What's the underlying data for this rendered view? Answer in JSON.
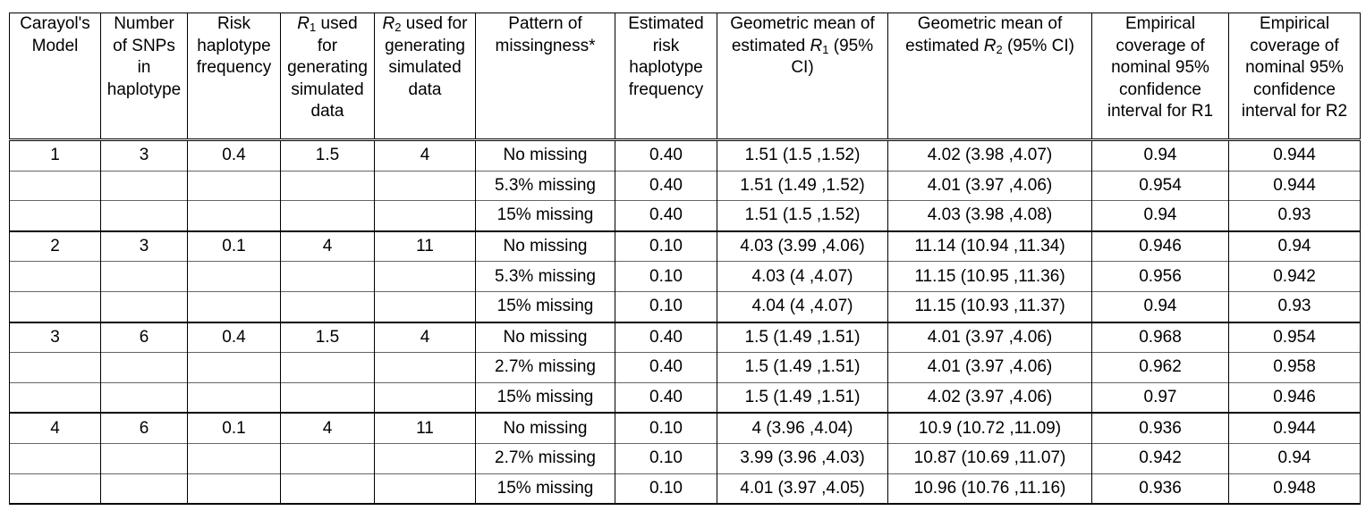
{
  "headers": {
    "c1": [
      "Carayol's",
      "Model"
    ],
    "c2": [
      "Number",
      "of SNPs",
      "in",
      "haplotype"
    ],
    "c3": [
      "Risk",
      "haplotype",
      "frequency"
    ],
    "c4": {
      "var": "R",
      "sub": "1",
      "after": " used",
      "lines": [
        "for",
        "generating",
        "simulated",
        "data"
      ]
    },
    "c5": {
      "var": "R",
      "sub": "2",
      "after": " used for",
      "lines": [
        "generating",
        "simulated",
        "data"
      ]
    },
    "c6": [
      "Pattern of",
      "missingness*"
    ],
    "c7": [
      "Estimated",
      "risk",
      "haplotype",
      "frequency"
    ],
    "c8": {
      "line1": "Geometric mean of",
      "pre": "estimated ",
      "var": "R",
      "sub": "1",
      "after": " (95%",
      "line3": "CI)"
    },
    "c9": {
      "line1": "Geometric mean of",
      "pre": "estimated ",
      "var": "R",
      "sub": "2",
      "after": " (95% CI)"
    },
    "c10": [
      "Empirical",
      "coverage of",
      "nominal 95%",
      "confidence",
      "interval for R1"
    ],
    "c11": [
      "Empirical",
      "coverage of",
      "nominal 95%",
      "confidence",
      "interval for R2"
    ]
  },
  "rows": [
    {
      "model": "1",
      "snps": "3",
      "freq": "0.4",
      "r1": "1.5",
      "r2": "4",
      "pattern": "No missing",
      "est": "0.40",
      "gm1": "1.51 (1.5 ,1.52)",
      "gm2": "4.02 (3.98 ,4.07)",
      "cov1": "0.94",
      "cov2": "0.944"
    },
    {
      "model": "",
      "snps": "",
      "freq": "",
      "r1": "",
      "r2": "",
      "pattern": "5.3% missing",
      "est": "0.40",
      "gm1": "1.51 (1.49 ,1.52)",
      "gm2": "4.01 (3.97 ,4.06)",
      "cov1": "0.954",
      "cov2": "0.944"
    },
    {
      "model": "",
      "snps": "",
      "freq": "",
      "r1": "",
      "r2": "",
      "pattern": "15% missing",
      "est": "0.40",
      "gm1": "1.51 (1.5 ,1.52)",
      "gm2": "4.03 (3.98 ,4.08)",
      "cov1": "0.94",
      "cov2": "0.93"
    },
    {
      "model": "2",
      "snps": "3",
      "freq": "0.1",
      "r1": "4",
      "r2": "11",
      "pattern": "No missing",
      "est": "0.10",
      "gm1": "4.03 (3.99 ,4.06)",
      "gm2": "11.14 (10.94 ,11.34)",
      "cov1": "0.946",
      "cov2": "0.94"
    },
    {
      "model": "",
      "snps": "",
      "freq": "",
      "r1": "",
      "r2": "",
      "pattern": "5.3% missing",
      "est": "0.10",
      "gm1": "4.03 (4 ,4.07)",
      "gm2": "11.15 (10.95 ,11.36)",
      "cov1": "0.956",
      "cov2": "0.942"
    },
    {
      "model": "",
      "snps": "",
      "freq": "",
      "r1": "",
      "r2": "",
      "pattern": "15% missing",
      "est": "0.10",
      "gm1": "4.04 (4 ,4.07)",
      "gm2": "11.15 (10.93 ,11.37)",
      "cov1": "0.94",
      "cov2": "0.93"
    },
    {
      "model": "3",
      "snps": "6",
      "freq": "0.4",
      "r1": "1.5",
      "r2": "4",
      "pattern": "No missing",
      "est": "0.40",
      "gm1": "1.5 (1.49 ,1.51)",
      "gm2": "4.01 (3.97 ,4.06)",
      "cov1": "0.968",
      "cov2": "0.954"
    },
    {
      "model": "",
      "snps": "",
      "freq": "",
      "r1": "",
      "r2": "",
      "pattern": "2.7% missing",
      "est": "0.40",
      "gm1": "1.5 (1.49 ,1.51)",
      "gm2": "4.01 (3.97 ,4.06)",
      "cov1": "0.962",
      "cov2": "0.958"
    },
    {
      "model": "",
      "snps": "",
      "freq": "",
      "r1": "",
      "r2": "",
      "pattern": "15% missing",
      "est": "0.40",
      "gm1": "1.5 (1.49 ,1.51)",
      "gm2": "4.02 (3.97 ,4.06)",
      "cov1": "0.97",
      "cov2": "0.946"
    },
    {
      "model": "4",
      "snps": "6",
      "freq": "0.1",
      "r1": "4",
      "r2": "11",
      "pattern": "No missing",
      "est": "0.10",
      "gm1": "4 (3.96 ,4.04)",
      "gm2": "10.9 (10.72 ,11.09)",
      "cov1": "0.936",
      "cov2": "0.944"
    },
    {
      "model": "",
      "snps": "",
      "freq": "",
      "r1": "",
      "r2": "",
      "pattern": "2.7% missing",
      "est": "0.10",
      "gm1": "3.99 (3.96 ,4.03)",
      "gm2": "10.87 (10.69 ,11.07)",
      "cov1": "0.942",
      "cov2": "0.94"
    },
    {
      "model": "",
      "snps": "",
      "freq": "",
      "r1": "",
      "r2": "",
      "pattern": "15% missing",
      "est": "0.10",
      "gm1": "4.01 (3.97 ,4.05)",
      "gm2": "10.96 (10.76 ,11.16)",
      "cov1": "0.936",
      "cov2": "0.948"
    }
  ]
}
